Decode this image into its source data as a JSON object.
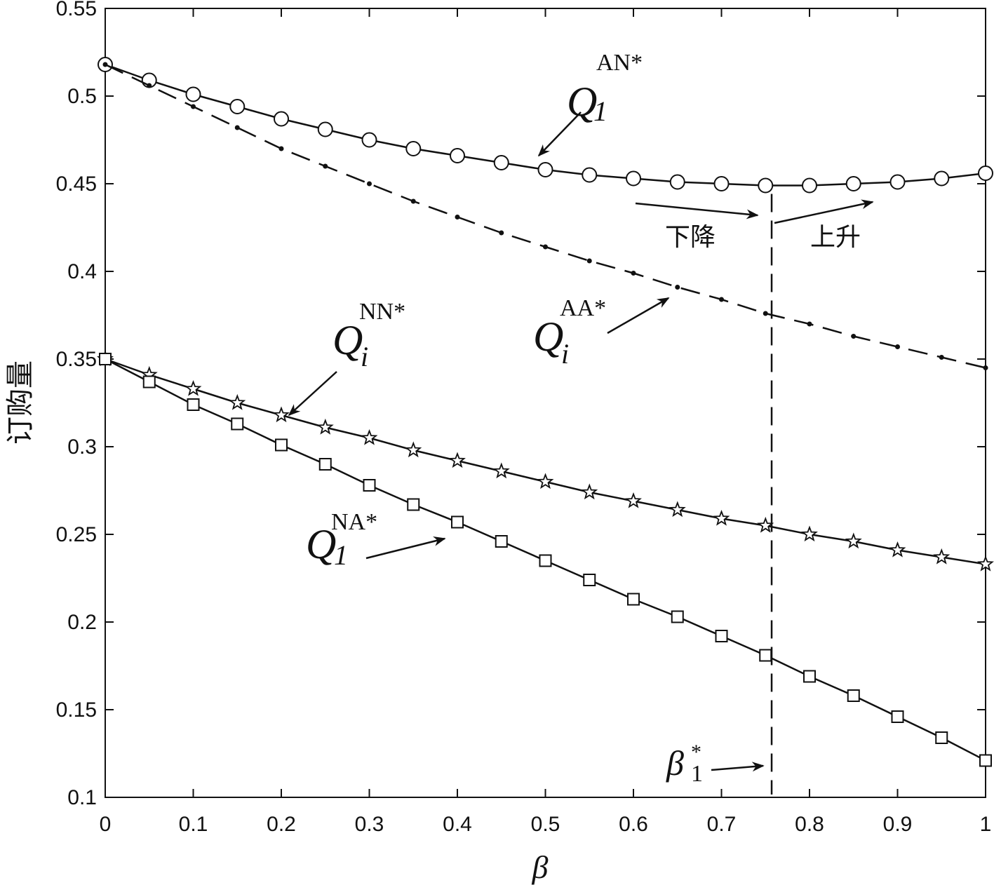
{
  "chart_data": {
    "type": "line",
    "xlabel": "β",
    "ylabel": "订购量",
    "xlim": [
      0,
      1
    ],
    "ylim": [
      0.1,
      0.55
    ],
    "xticks": [
      0,
      0.1,
      0.2,
      0.3,
      0.4,
      0.5,
      0.6,
      0.7,
      0.8,
      0.9,
      1
    ],
    "xtick_labels": [
      "0",
      "0.1",
      "0.2",
      "0.3",
      "0.4",
      "0.5",
      "0.6",
      "0.7",
      "0.8",
      "0.9",
      "1"
    ],
    "yticks": [
      0.1,
      0.15,
      0.2,
      0.25,
      0.3,
      0.35,
      0.4,
      0.45,
      0.5,
      0.55
    ],
    "ytick_labels": [
      "0.1",
      "0.15",
      "0.2",
      "0.25",
      "0.3",
      "0.35",
      "0.4",
      "0.45",
      "0.5",
      "0.55"
    ],
    "grid": false,
    "x": [
      0,
      0.05,
      0.1,
      0.15,
      0.2,
      0.25,
      0.3,
      0.35,
      0.4,
      0.45,
      0.5,
      0.55,
      0.6,
      0.65,
      0.7,
      0.75,
      0.8,
      0.85,
      0.9,
      0.95,
      1
    ],
    "series": [
      {
        "marker": "circle",
        "line": "solid",
        "values": [
          0.518,
          0.509,
          0.501,
          0.494,
          0.487,
          0.481,
          0.475,
          0.47,
          0.466,
          0.462,
          0.458,
          0.455,
          0.453,
          0.451,
          0.45,
          0.449,
          0.449,
          0.45,
          0.451,
          0.453,
          0.456
        ]
      },
      {
        "marker": "dot",
        "line": "dashed",
        "values": [
          0.518,
          0.506,
          0.494,
          0.482,
          0.47,
          0.46,
          0.45,
          0.44,
          0.431,
          0.422,
          0.414,
          0.406,
          0.399,
          0.391,
          0.384,
          0.376,
          0.37,
          0.363,
          0.357,
          0.351,
          0.345
        ]
      },
      {
        "marker": "star",
        "line": "solid",
        "values": [
          0.35,
          0.341,
          0.333,
          0.325,
          0.318,
          0.311,
          0.305,
          0.298,
          0.292,
          0.286,
          0.28,
          0.274,
          0.269,
          0.264,
          0.259,
          0.255,
          0.25,
          0.246,
          0.241,
          0.237,
          0.233
        ]
      },
      {
        "marker": "square",
        "line": "solid",
        "values": [
          0.35,
          0.337,
          0.324,
          0.313,
          0.301,
          0.29,
          0.278,
          0.267,
          0.257,
          0.246,
          0.235,
          0.224,
          0.213,
          0.203,
          0.192,
          0.181,
          0.169,
          0.158,
          0.146,
          0.134,
          0.121
        ]
      }
    ],
    "vline": {
      "x": 0.757,
      "style": "dashed"
    },
    "annotations": {
      "q_an": {
        "base": "Q",
        "sub": "1",
        "sup": "AN*"
      },
      "q_aa": {
        "base": "Q",
        "sub": "i",
        "sup": "AA*"
      },
      "q_nn": {
        "base": "Q",
        "sub": "i",
        "sup": "NN*"
      },
      "q_na": {
        "base": "Q",
        "sub": "1",
        "sup": "NA*"
      },
      "beta_star": {
        "base": "β",
        "sub": "1",
        "sup": "*"
      },
      "decrease": "下降",
      "increase": "上升"
    },
    "colors": {
      "line": "#111111",
      "background": "#ffffff"
    }
  }
}
